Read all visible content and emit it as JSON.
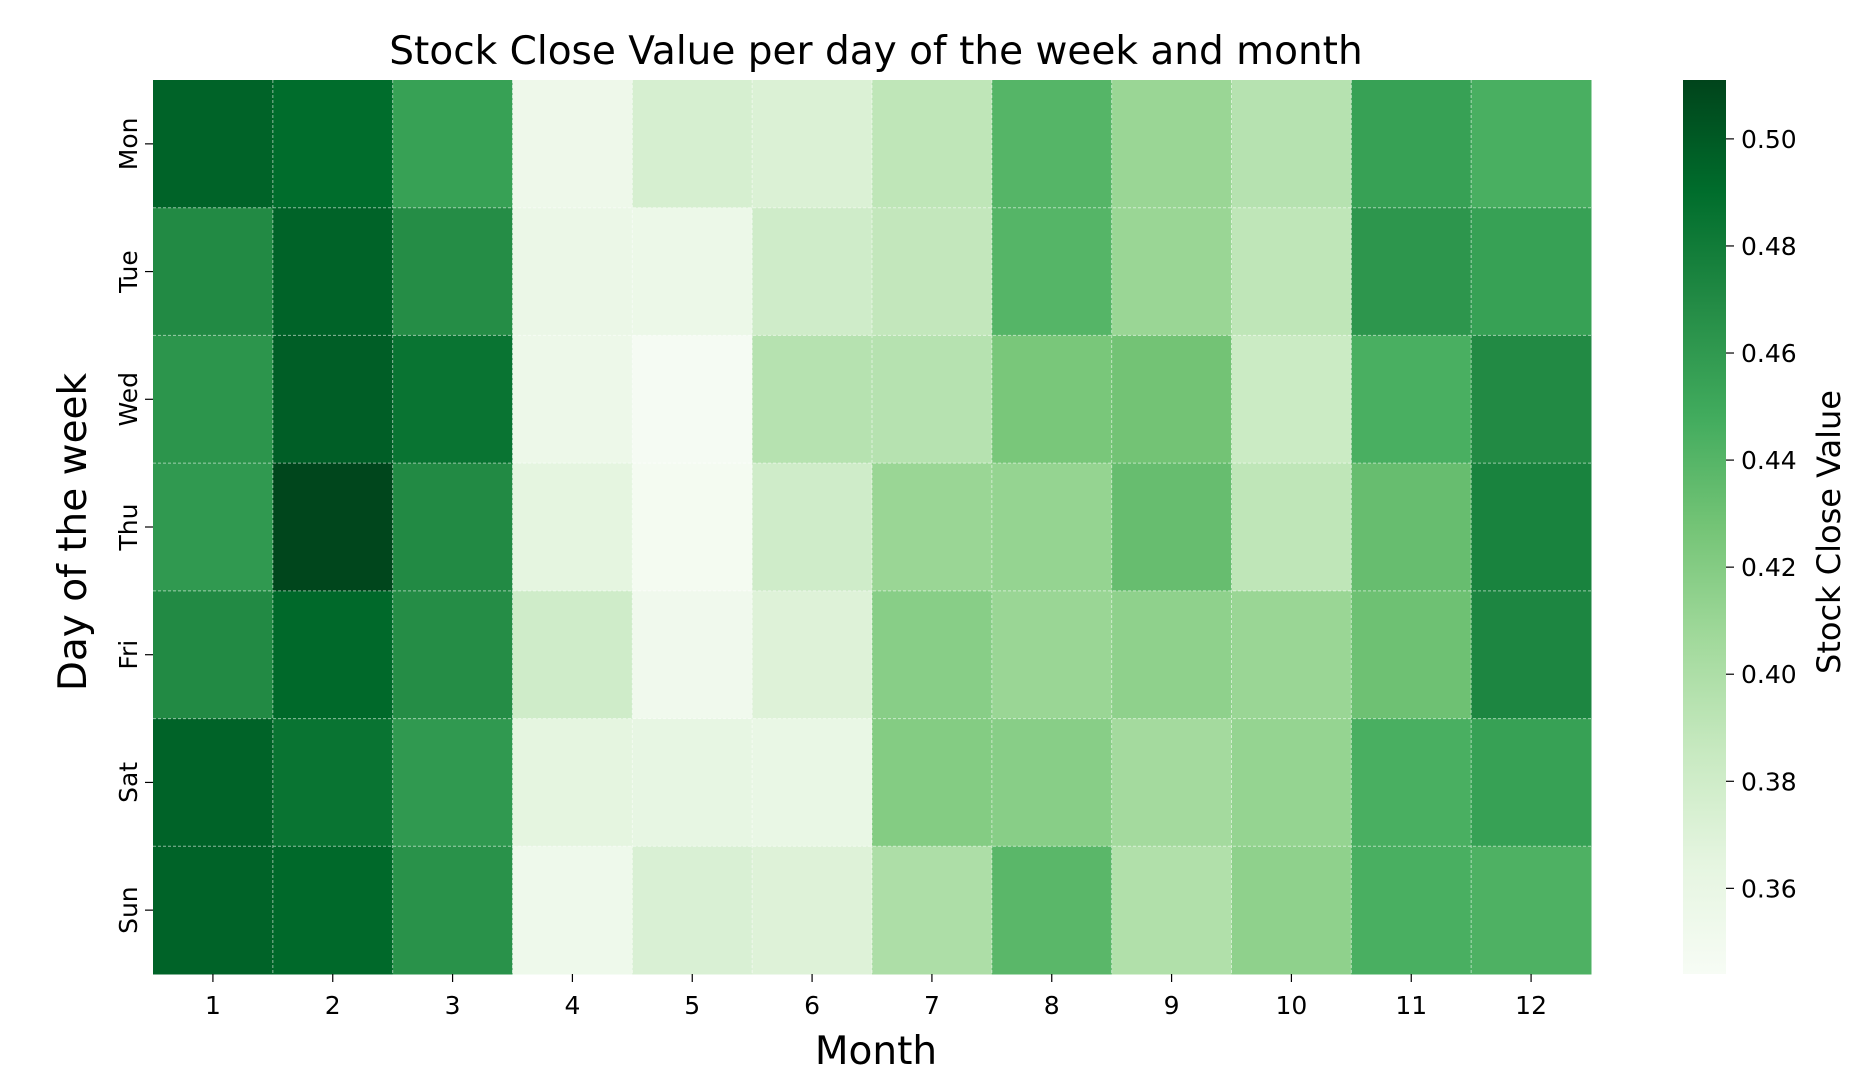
{
  "chart_data": {
    "type": "heatmap",
    "title": "Stock Close Value per day of the week and month",
    "xlabel": "Month",
    "ylabel": "Day of the week",
    "x_categories": [
      "1",
      "2",
      "3",
      "4",
      "5",
      "6",
      "7",
      "8",
      "9",
      "10",
      "11",
      "12"
    ],
    "y_categories": [
      "Mon",
      "Tue",
      "Wed",
      "Thu",
      "Fri",
      "Sat",
      "Sun"
    ],
    "values": [
      [
        0.495,
        0.49,
        0.455,
        0.355,
        0.375,
        0.372,
        0.39,
        0.44,
        0.41,
        0.395,
        0.455,
        0.445
      ],
      [
        0.47,
        0.495,
        0.468,
        0.358,
        0.357,
        0.38,
        0.388,
        0.44,
        0.41,
        0.39,
        0.462,
        0.455
      ],
      [
        0.463,
        0.498,
        0.485,
        0.356,
        0.346,
        0.395,
        0.395,
        0.425,
        0.428,
        0.383,
        0.445,
        0.47
      ],
      [
        0.46,
        0.51,
        0.47,
        0.365,
        0.348,
        0.38,
        0.41,
        0.412,
        0.433,
        0.39,
        0.433,
        0.475
      ],
      [
        0.47,
        0.492,
        0.468,
        0.38,
        0.352,
        0.37,
        0.418,
        0.41,
        0.415,
        0.41,
        0.43,
        0.473
      ],
      [
        0.495,
        0.485,
        0.46,
        0.365,
        0.362,
        0.36,
        0.42,
        0.418,
        0.405,
        0.412,
        0.445,
        0.455
      ],
      [
        0.495,
        0.492,
        0.465,
        0.354,
        0.373,
        0.37,
        0.4,
        0.438,
        0.398,
        0.415,
        0.445,
        0.443
      ]
    ],
    "colorbar": {
      "label": "Stock Close Value",
      "range": [
        0.344,
        0.511
      ],
      "ticks": [
        0.5,
        0.48,
        0.46,
        0.44,
        0.42,
        0.4,
        0.38,
        0.36
      ],
      "tick_labels": [
        "0.50",
        "0.48",
        "0.46",
        "0.44",
        "0.42",
        "0.40",
        "0.38",
        "0.36"
      ],
      "colormap": "Greens",
      "colormap_stops": [
        "#f7fcf5",
        "#e5f5e0",
        "#c7e9c0",
        "#a1d99b",
        "#74c476",
        "#41ab5d",
        "#238b45",
        "#006d2c",
        "#00441b"
      ]
    },
    "grid": true,
    "legend": "colorbar-right"
  }
}
